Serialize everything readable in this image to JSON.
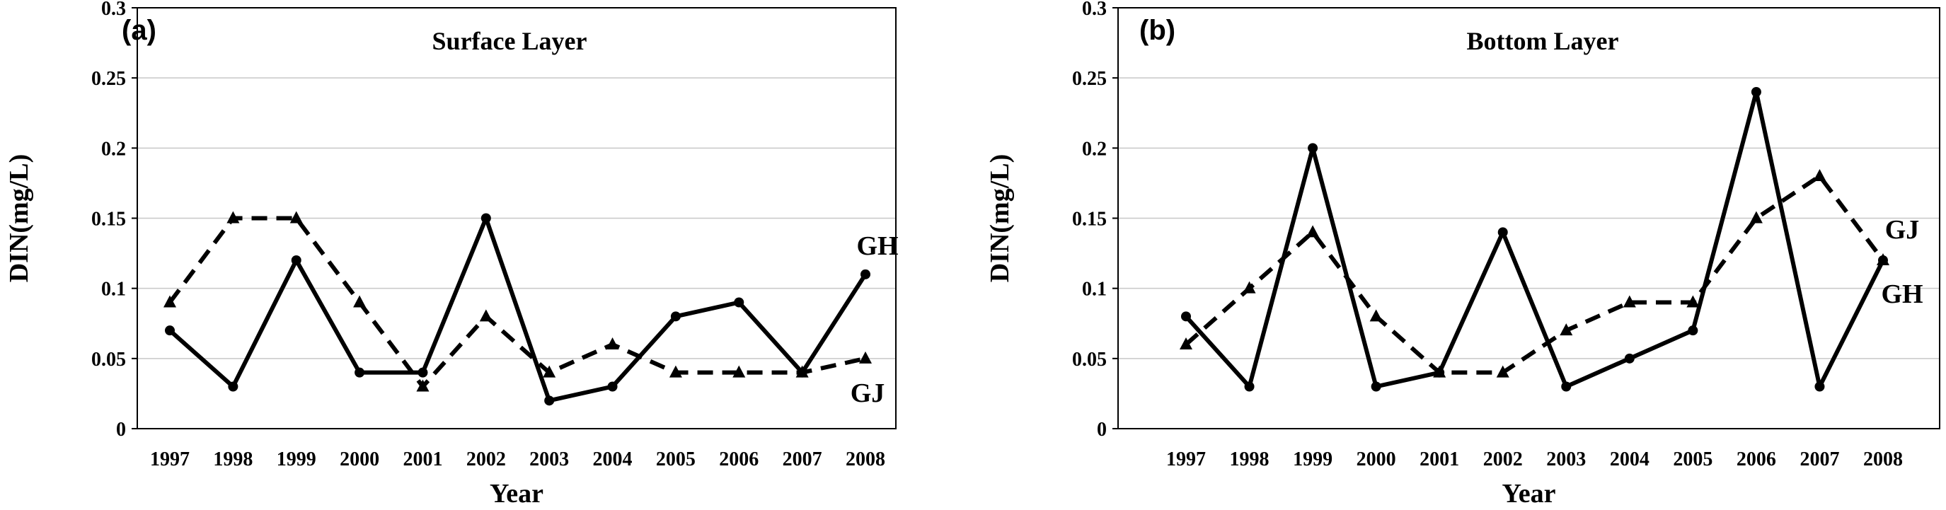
{
  "chart_data": [
    {
      "type": "line",
      "panel_label": "(a)",
      "title": "Surface Layer",
      "xlabel": "Year",
      "ylabel": "DIN(mg/L)",
      "ylim": [
        0,
        0.3
      ],
      "yticks": [
        "0",
        "0.05",
        "0.1",
        "0.15",
        "0.2",
        "0.25",
        "0.3"
      ],
      "grid": true,
      "categories": [
        "1997",
        "1998",
        "1999",
        "2000",
        "2001",
        "2002",
        "2003",
        "2004",
        "2005",
        "2006",
        "2007",
        "2008"
      ],
      "series": [
        {
          "name": "GH",
          "style": "solid",
          "marker": "circle",
          "color": "#000000",
          "values": [
            0.07,
            0.03,
            0.12,
            0.04,
            0.04,
            0.15,
            0.02,
            0.03,
            0.08,
            0.09,
            0.04,
            0.11
          ]
        },
        {
          "name": "GJ",
          "style": "dashed",
          "marker": "triangle",
          "color": "#000000",
          "values": [
            0.09,
            0.15,
            0.15,
            0.09,
            0.03,
            0.08,
            0.04,
            0.06,
            0.04,
            0.04,
            0.04,
            0.05
          ]
        }
      ]
    },
    {
      "type": "line",
      "panel_label": "(b)",
      "title": "Bottom Layer",
      "xlabel": "Year",
      "ylabel": "DIN(mg/L)",
      "ylim": [
        0,
        0.3
      ],
      "yticks": [
        "0",
        "0.05",
        "0.1",
        "0.15",
        "0.2",
        "0.25",
        "0.3"
      ],
      "grid": true,
      "categories": [
        "1997",
        "1998",
        "1999",
        "2000",
        "2001",
        "2002",
        "2003",
        "2004",
        "2005",
        "2006",
        "2007",
        "2008"
      ],
      "series": [
        {
          "name": "GH",
          "style": "solid",
          "marker": "circle",
          "color": "#000000",
          "values": [
            0.08,
            0.03,
            0.2,
            0.03,
            0.04,
            0.14,
            0.03,
            0.05,
            0.07,
            0.24,
            0.03,
            0.12
          ]
        },
        {
          "name": "GJ",
          "style": "dashed",
          "marker": "triangle",
          "color": "#000000",
          "values": [
            0.06,
            0.1,
            0.14,
            0.08,
            0.04,
            0.04,
            0.07,
            0.09,
            0.09,
            0.15,
            0.18,
            0.12
          ]
        }
      ]
    }
  ]
}
